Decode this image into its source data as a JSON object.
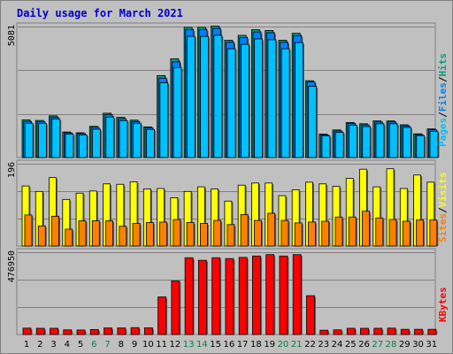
{
  "chart_data": {
    "type": "bar",
    "title": "Daily usage for March 2021",
    "categories": [
      "1",
      "2",
      "3",
      "4",
      "5",
      "6",
      "7",
      "8",
      "9",
      "10",
      "11",
      "12",
      "13",
      "14",
      "15",
      "16",
      "17",
      "18",
      "19",
      "20",
      "21",
      "22",
      "23",
      "24",
      "25",
      "26",
      "27",
      "28",
      "29",
      "30",
      "31"
    ],
    "weekend_days": [
      "6",
      "7",
      "13",
      "14",
      "20",
      "21",
      "27",
      "28"
    ],
    "colors": {
      "pages": "#00c0ff",
      "files": "#0080ff",
      "hits": "#00a080",
      "visits": "#ffff00",
      "sites": "#ff8000",
      "kbytes": "#ff0000",
      "title": "#0000cc",
      "weekend_label": "#00804a"
    },
    "panels": [
      {
        "id": "hits-files-pages",
        "max_label": "5081",
        "ylim": [
          0,
          5081
        ],
        "legend": [
          "Pages",
          "/",
          "Files",
          "/",
          "Hits"
        ],
        "series": [
          {
            "name": "Hits",
            "values": [
              1460,
              1440,
              1620,
              990,
              960,
              1210,
              1720,
              1560,
              1450,
              1190,
              3180,
              3830,
              5050,
              5050,
              5100,
              4550,
              4740,
              4960,
              4930,
              4550,
              4820,
              2980,
              910,
              1070,
              1360,
              1310,
              1420,
              1420,
              1270,
              920,
              1110
            ]
          },
          {
            "name": "Files",
            "values": [
              1400,
              1390,
              1570,
              960,
              930,
              1170,
              1660,
              1510,
              1400,
              1150,
              3080,
              3710,
              4960,
              4960,
              5010,
              4470,
              4650,
              4870,
              4840,
              4470,
              4730,
              2930,
              880,
              1030,
              1320,
              1270,
              1380,
              1380,
              1230,
              890,
              1080
            ]
          },
          {
            "name": "Pages",
            "values": [
              1330,
              1320,
              1500,
              910,
              880,
              1100,
              1570,
              1430,
              1330,
              1090,
              2900,
              3490,
              4700,
              4700,
              4740,
              4220,
              4390,
              4600,
              4570,
              4220,
              4460,
              2760,
              840,
              980,
              1250,
              1200,
              1310,
              1310,
              1170,
              850,
              1020
            ]
          }
        ]
      },
      {
        "id": "visits-sites",
        "max_label": "196",
        "ylim": [
          0,
          196
        ],
        "legend": [
          "Sites",
          "/",
          "Visits"
        ],
        "series": [
          {
            "name": "Visits",
            "values": [
              143,
              130,
              163,
              111,
              126,
              131,
              148,
              147,
              153,
              136,
              137,
              115,
              130,
              141,
              136,
              107,
              145,
              150,
              150,
              120,
              134,
              152,
              148,
              142,
              161,
              183,
              141,
              184,
              137,
              169,
              152
            ]
          },
          {
            "name": "Sites",
            "values": [
              74,
              48,
              71,
              40,
              60,
              60,
              60,
              47,
              54,
              56,
              57,
              63,
              56,
              54,
              61,
              51,
              75,
              61,
              78,
              61,
              55,
              57,
              59,
              69,
              69,
              83,
              67,
              63,
              59,
              62,
              62
            ]
          }
        ]
      },
      {
        "id": "kbytes",
        "max_label": "476950",
        "ylim": [
          0,
          476950
        ],
        "legend": [
          "KBytes"
        ],
        "series": [
          {
            "name": "KBytes",
            "values": [
              37000,
              36000,
              36000,
              27000,
              26000,
              29000,
              38000,
              38000,
              40000,
              39000,
              218000,
              310000,
              445000,
              430000,
              445000,
              440000,
              447000,
              455000,
              463000,
              455000,
              463000,
              225000,
              25000,
              27000,
              36000,
              36000,
              36000,
              37000,
              30000,
              30000,
              30000
            ]
          }
        ]
      }
    ]
  }
}
